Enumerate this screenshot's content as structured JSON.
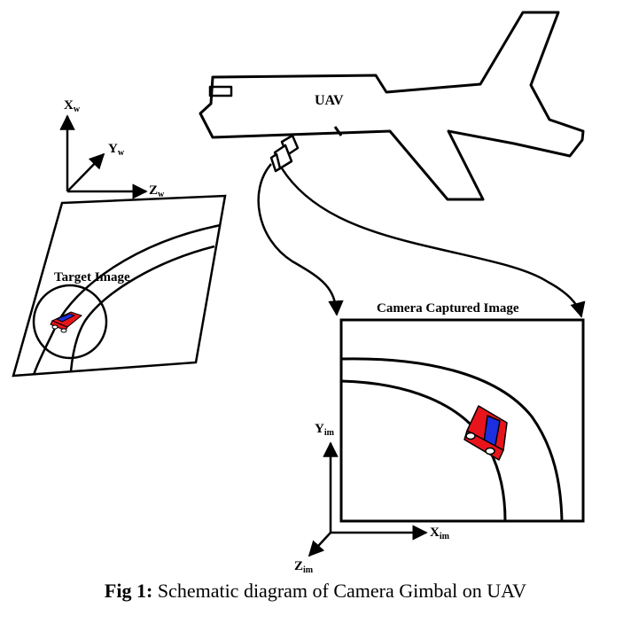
{
  "labels": {
    "uav": "UAV",
    "target_image": "Target Image",
    "camera_captured_image": "Camera Captured Image"
  },
  "world_axes": {
    "x": {
      "base": "X",
      "sub": "w"
    },
    "y": {
      "base": "Y",
      "sub": "w"
    },
    "z": {
      "base": "Z",
      "sub": "w"
    }
  },
  "image_axes": {
    "x": {
      "base": "X",
      "sub": "im"
    },
    "y": {
      "base": "Y",
      "sub": "im"
    },
    "z": {
      "base": "Z",
      "sub": "im"
    }
  },
  "caption": {
    "prefix": "Fig 1:",
    "text": " Schematic diagram of Camera Gimbal on UAV"
  },
  "colors": {
    "line": "#000000",
    "car_body": "#e8141c",
    "car_stripe": "#1c2fe0",
    "car_wheel": "#ffffff"
  }
}
